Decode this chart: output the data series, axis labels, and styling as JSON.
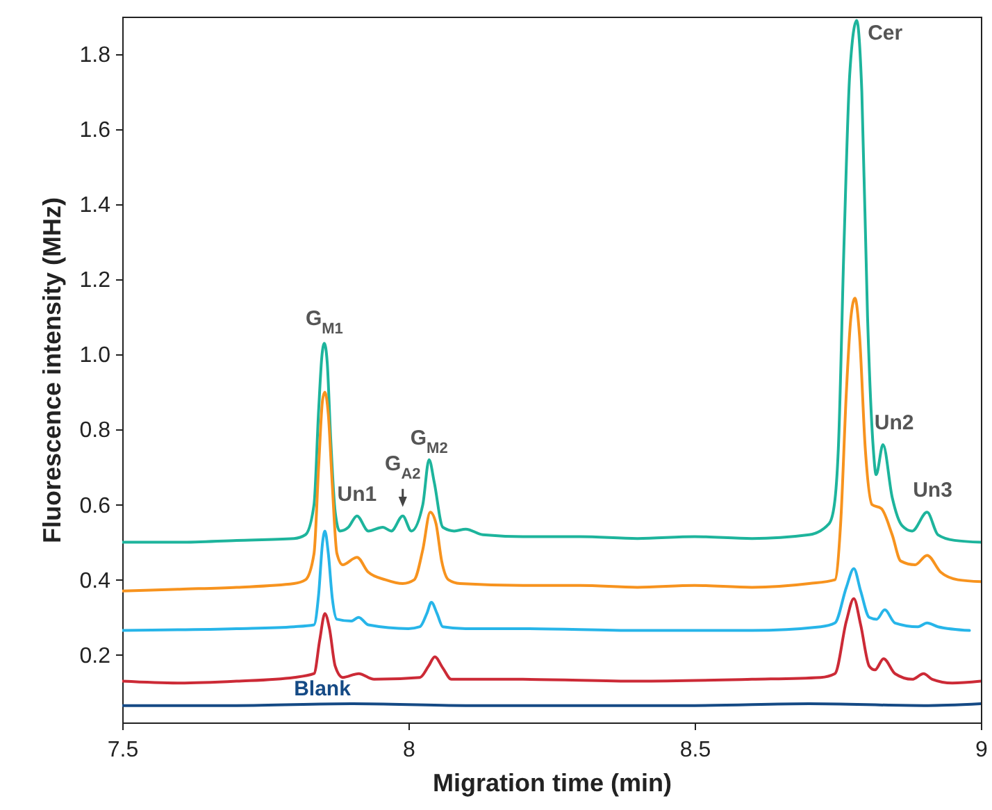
{
  "chart_data": {
    "type": "line",
    "xlabel": "Migration time (min)",
    "ylabel": "Fluorescence intensity (MHz)",
    "xlim": [
      7.5,
      9
    ],
    "xticks": [
      7.5,
      8,
      8.5,
      9
    ],
    "ylim": [
      0.02,
      1.9
    ],
    "yticks": [
      0.2,
      0.4,
      0.6,
      0.8,
      {
        "value": 1,
        "label": "1.0"
      },
      1.2,
      1.4,
      1.6,
      1.8
    ],
    "grid": false,
    "line_style": "solid",
    "series": [
      {
        "color": "#1db49c",
        "x": [
          7.5,
          7.6,
          7.7,
          7.8,
          7.82,
          7.835,
          7.843,
          7.849,
          7.853,
          7.858,
          7.864,
          7.872,
          7.88,
          7.895,
          7.91,
          7.93,
          7.955,
          7.97,
          7.99,
          8.005,
          8.025,
          8.036,
          8.045,
          8.06,
          8.08,
          8.1,
          8.13,
          8.2,
          8.3,
          8.4,
          8.5,
          8.6,
          8.7,
          8.735,
          8.744,
          8.751,
          8.761,
          8.771,
          8.783,
          8.792,
          8.802,
          8.812,
          8.817,
          8.829,
          8.845,
          8.862,
          8.88,
          8.906,
          8.925,
          8.954,
          9.0
        ],
        "values": [
          0.5,
          0.5,
          0.505,
          0.51,
          0.52,
          0.6,
          0.85,
          1.0,
          1.03,
          0.98,
          0.78,
          0.58,
          0.53,
          0.54,
          0.57,
          0.53,
          0.54,
          0.53,
          0.57,
          0.53,
          0.6,
          0.72,
          0.66,
          0.54,
          0.53,
          0.535,
          0.52,
          0.515,
          0.515,
          0.51,
          0.515,
          0.51,
          0.52,
          0.55,
          0.6,
          0.75,
          1.3,
          1.75,
          1.89,
          1.7,
          1.1,
          0.75,
          0.68,
          0.76,
          0.62,
          0.545,
          0.53,
          0.58,
          0.52,
          0.505,
          0.5
        ]
      },
      {
        "color": "#f7931e",
        "x": [
          7.5,
          7.6,
          7.7,
          7.8,
          7.82,
          7.835,
          7.843,
          7.85,
          7.854,
          7.86,
          7.867,
          7.875,
          7.885,
          7.91,
          7.93,
          7.96,
          7.99,
          8.01,
          8.025,
          8.038,
          8.048,
          8.058,
          8.07,
          8.09,
          8.2,
          8.3,
          8.4,
          8.5,
          8.6,
          8.7,
          8.745,
          8.755,
          8.765,
          8.773,
          8.78,
          8.788,
          8.798,
          8.81,
          8.826,
          8.845,
          8.86,
          8.885,
          8.906,
          8.93,
          8.96,
          9.0
        ],
        "values": [
          0.37,
          0.375,
          0.38,
          0.39,
          0.4,
          0.47,
          0.7,
          0.88,
          0.9,
          0.84,
          0.65,
          0.47,
          0.44,
          0.46,
          0.42,
          0.4,
          0.39,
          0.4,
          0.48,
          0.58,
          0.55,
          0.45,
          0.4,
          0.39,
          0.385,
          0.385,
          0.38,
          0.385,
          0.38,
          0.39,
          0.4,
          0.55,
          0.9,
          1.1,
          1.15,
          1.05,
          0.75,
          0.6,
          0.59,
          0.52,
          0.45,
          0.44,
          0.465,
          0.42,
          0.4,
          0.395
        ]
      },
      {
        "color": "#27b5e9",
        "x": [
          7.5,
          7.7,
          7.8,
          7.835,
          7.843,
          7.85,
          7.854,
          7.86,
          7.867,
          7.875,
          7.9,
          7.913,
          7.93,
          8.0,
          8.02,
          8.032,
          8.04,
          8.05,
          8.06,
          8.1,
          8.2,
          8.4,
          8.6,
          8.72,
          8.745,
          8.765,
          8.778,
          8.79,
          8.805,
          8.818,
          8.832,
          8.85,
          8.89,
          8.906,
          8.925,
          8.98
        ],
        "values": [
          0.265,
          0.27,
          0.275,
          0.28,
          0.36,
          0.5,
          0.53,
          0.47,
          0.35,
          0.295,
          0.29,
          0.3,
          0.28,
          0.27,
          0.275,
          0.31,
          0.34,
          0.31,
          0.275,
          0.27,
          0.27,
          0.265,
          0.265,
          0.275,
          0.285,
          0.38,
          0.43,
          0.37,
          0.3,
          0.295,
          0.32,
          0.285,
          0.275,
          0.285,
          0.275,
          0.265
        ]
      },
      {
        "color": "#cc2a36",
        "x": [
          7.5,
          7.6,
          7.7,
          7.8,
          7.835,
          7.845,
          7.854,
          7.862,
          7.872,
          7.885,
          7.913,
          7.94,
          8.02,
          8.035,
          8.046,
          8.06,
          8.075,
          8.2,
          8.4,
          8.6,
          8.72,
          8.745,
          8.765,
          8.778,
          8.79,
          8.805,
          8.815,
          8.83,
          8.85,
          8.88,
          8.9,
          8.915,
          8.95,
          9.0
        ],
        "values": [
          0.13,
          0.125,
          0.13,
          0.14,
          0.15,
          0.24,
          0.31,
          0.27,
          0.17,
          0.14,
          0.15,
          0.135,
          0.14,
          0.17,
          0.195,
          0.165,
          0.135,
          0.135,
          0.13,
          0.135,
          0.14,
          0.15,
          0.29,
          0.35,
          0.28,
          0.17,
          0.16,
          0.19,
          0.15,
          0.135,
          0.15,
          0.135,
          0.125,
          0.13
        ]
      },
      {
        "name": "Blank",
        "color": "#154a85",
        "x": [
          7.5,
          7.7,
          7.9,
          8.1,
          8.3,
          8.5,
          8.7,
          8.9,
          9.0
        ],
        "values": [
          0.065,
          0.065,
          0.07,
          0.065,
          0.065,
          0.065,
          0.07,
          0.065,
          0.07
        ]
      }
    ],
    "annotations": [
      {
        "text": "G$_{M1}$",
        "x": 7.853,
        "y": 1.03
      },
      {
        "text": "Un1",
        "x": 7.91,
        "y": 0.57
      },
      {
        "text": "G$_{A2}$",
        "x": 7.99,
        "y": 0.57
      },
      {
        "text": "G$_{M2}$",
        "x": 8.036,
        "y": 0.72
      },
      {
        "text": "Cer",
        "x": 8.783,
        "y": 1.89
      },
      {
        "text": "Un2",
        "x": 8.829,
        "y": 0.76
      },
      {
        "text": "Un3",
        "x": 8.906,
        "y": 0.58
      }
    ]
  }
}
